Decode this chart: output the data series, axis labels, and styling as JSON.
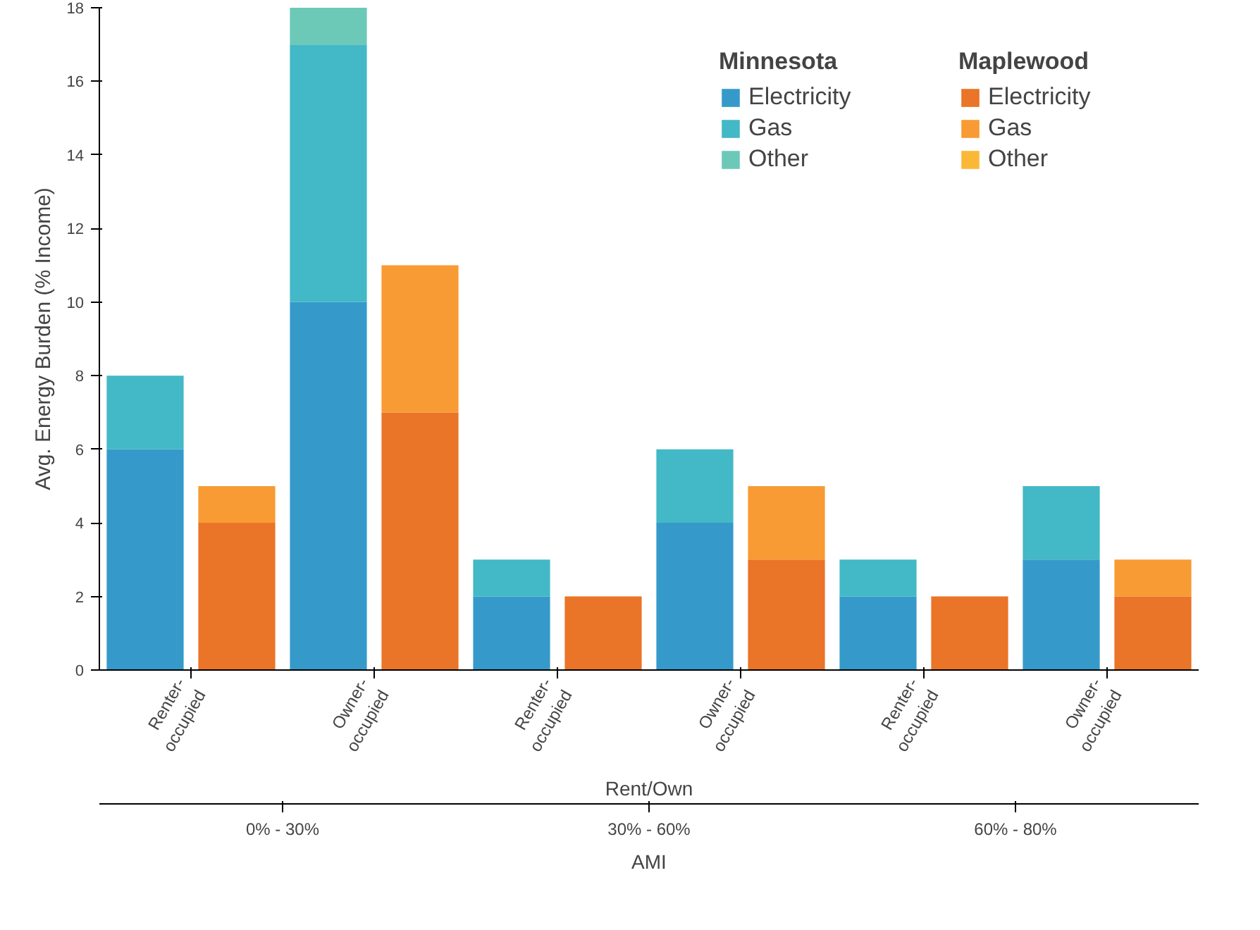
{
  "chart_data": {
    "type": "bar",
    "stacked": true,
    "ylabel": "Avg. Energy Burden (% Income)",
    "xlabel": "Rent/Own",
    "categories": [
      "Renter-occupied",
      null,
      "Owner-occupied",
      null,
      "Renter-occupied",
      null,
      "Owner-occupied",
      null,
      "Renter-occupied",
      null,
      "Owner-occupied",
      null
    ],
    "series": [
      {
        "name": "Electricity",
        "color": "#1f8fc4",
        "values": [
          6,
          null,
          10,
          null,
          2,
          null,
          4,
          null,
          2,
          null,
          3,
          null
        ]
      },
      {
        "name": "Gas",
        "color": "#2fb0c0",
        "values": [
          2,
          null,
          7,
          null,
          1,
          null,
          2,
          null,
          1,
          null,
          2,
          null
        ]
      },
      {
        "name": "Other",
        "color": "#5cc3b0",
        "values": [
          0,
          null,
          1,
          null,
          0,
          null,
          0,
          null,
          0,
          null,
          0,
          null
        ]
      },
      {
        "name": "Electricity",
        "color": "#e8650f",
        "values": [
          null,
          4,
          null,
          7,
          null,
          2,
          null,
          3,
          null,
          2,
          null,
          2
        ]
      },
      {
        "name": "Gas",
        "color": "#f7901e",
        "values": [
          null,
          1,
          null,
          4,
          null,
          0,
          null,
          2,
          null,
          0,
          null,
          1
        ]
      },
      {
        "name": "Other",
        "color": "#f9b020",
        "values": [
          null,
          0,
          null,
          0,
          null,
          0,
          null,
          0,
          null,
          0,
          null,
          0
        ]
      }
    ],
    "annotations": [
      "Minnesota",
      "Maplewood",
      "0% - 30%",
      "30% - 60%",
      "60% - 80%",
      "AMI"
    ],
    "ylim": [
      0,
      18
    ],
    "yticks": [
      0,
      2,
      4,
      6,
      8,
      10,
      12,
      14,
      16,
      18
    ],
    "grid": false,
    "legend": "top right"
  }
}
